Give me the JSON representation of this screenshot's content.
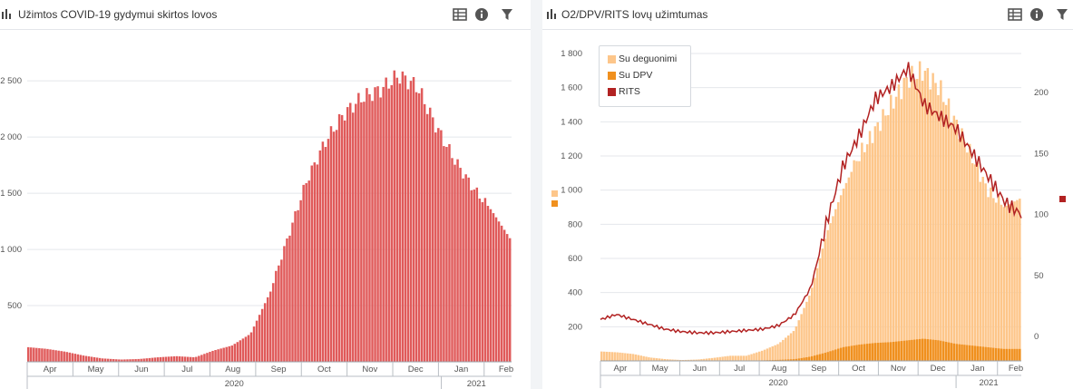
{
  "panels": {
    "left": {
      "title": "Užimtos COVID-19 gydymui skirtos lovos"
    },
    "right": {
      "title": "O2/DPV/RITS lovų užimtumas"
    }
  },
  "icons": [
    "bar-chart-icon",
    "table-icon",
    "info-icon",
    "filter-icon"
  ],
  "colors": {
    "left_bars": "#e05a5a",
    "oxygen": "#fdc68a",
    "dpv": "#f0901e",
    "rits": "#b22222",
    "accent": "#2b5c8a"
  },
  "chart_data": [
    {
      "type": "bar",
      "title": "Užimtos COVID-19 gydymui skirtos lovos",
      "xlabel": "",
      "ylabel": "",
      "ylim": [
        0,
        2800
      ],
      "y_ticks": [
        500,
        1000,
        1500,
        2000,
        2500
      ],
      "y_tick_labels": [
        "500",
        "1 000",
        "1 500",
        "2 000",
        "2 500"
      ],
      "x_tick_labels": [
        "Apr",
        "May",
        "Jun",
        "Jul",
        "Aug",
        "Sep",
        "Oct",
        "Nov",
        "Dec",
        "Jan",
        "Feb"
      ],
      "x_group_labels": [
        "2020",
        "2021"
      ],
      "grid": true,
      "series": [
        {
          "values": [
            130,
            115,
            90,
            55,
            30,
            20,
            25,
            40,
            50,
            40,
            100,
            145,
            250,
            600,
            1100,
            1600,
            1950,
            2200,
            2350,
            2420,
            2550,
            2450,
            2100,
            1800,
            1550,
            1350,
            1100
          ]
        }
      ]
    },
    {
      "type": "bar",
      "title": "O2/DPV/RITS lovų užimtumas",
      "xlabel": "",
      "ylabel": "",
      "ylim": [
        0,
        1800
      ],
      "y_ticks": [
        200,
        400,
        600,
        800,
        1000,
        1200,
        1400,
        1600,
        1800
      ],
      "y_tick_labels": [
        "200",
        "400",
        "600",
        "800",
        "1 000",
        "1 200",
        "1 400",
        "1 600",
        "1 800"
      ],
      "y2lim": [
        -20,
        232
      ],
      "y2_ticks": [
        0,
        50,
        100,
        150,
        200
      ],
      "y2_tick_labels": [
        "0",
        "50",
        "100",
        "150",
        "200"
      ],
      "x_tick_labels": [
        "Apr",
        "May",
        "Jun",
        "Jul",
        "Aug",
        "Sep",
        "Oct",
        "Nov",
        "Dec",
        "Jan",
        "Feb"
      ],
      "x_group_labels": [
        "2020",
        "2021"
      ],
      "grid": true,
      "legend": "top-left",
      "series": [
        {
          "name": "Su deguonimi",
          "type": "bar",
          "values": [
            55,
            50,
            40,
            20,
            10,
            5,
            8,
            18,
            30,
            30,
            60,
            100,
            180,
            400,
            750,
            1000,
            1200,
            1350,
            1500,
            1650,
            1700,
            1600,
            1400,
            1200,
            1000,
            900,
            950
          ]
        },
        {
          "name": "Su DPV",
          "type": "bar",
          "values": [
            3,
            3,
            2,
            1,
            1,
            1,
            1,
            1,
            2,
            2,
            3,
            6,
            10,
            25,
            50,
            80,
            95,
            105,
            110,
            120,
            130,
            120,
            100,
            90,
            80,
            70,
            70
          ]
        },
        {
          "name": "RITS",
          "type": "line",
          "axis": "right",
          "values": [
            14,
            18,
            14,
            10,
            6,
            4,
            3,
            3,
            4,
            5,
            6,
            9,
            18,
            40,
            95,
            140,
            165,
            195,
            205,
            220,
            190,
            180,
            170,
            150,
            130,
            110,
            100
          ]
        }
      ]
    }
  ]
}
